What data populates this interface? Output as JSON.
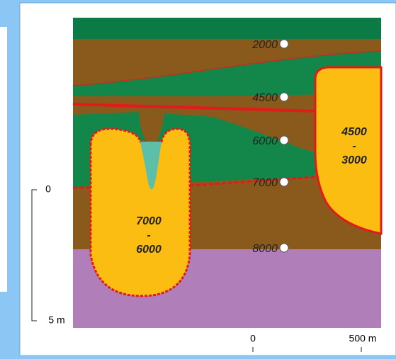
{
  "section": {
    "contours": [
      "2000",
      "4500",
      "6000",
      "7000",
      "8000"
    ],
    "right_body": {
      "top": "4500",
      "sep": "-",
      "bottom": "3000"
    },
    "left_body": {
      "top": "7000",
      "sep": "-",
      "bottom": "6000"
    },
    "depth_scale": [
      "0",
      "5 m"
    ],
    "distance_scale": [
      "0",
      "500 m"
    ]
  }
}
